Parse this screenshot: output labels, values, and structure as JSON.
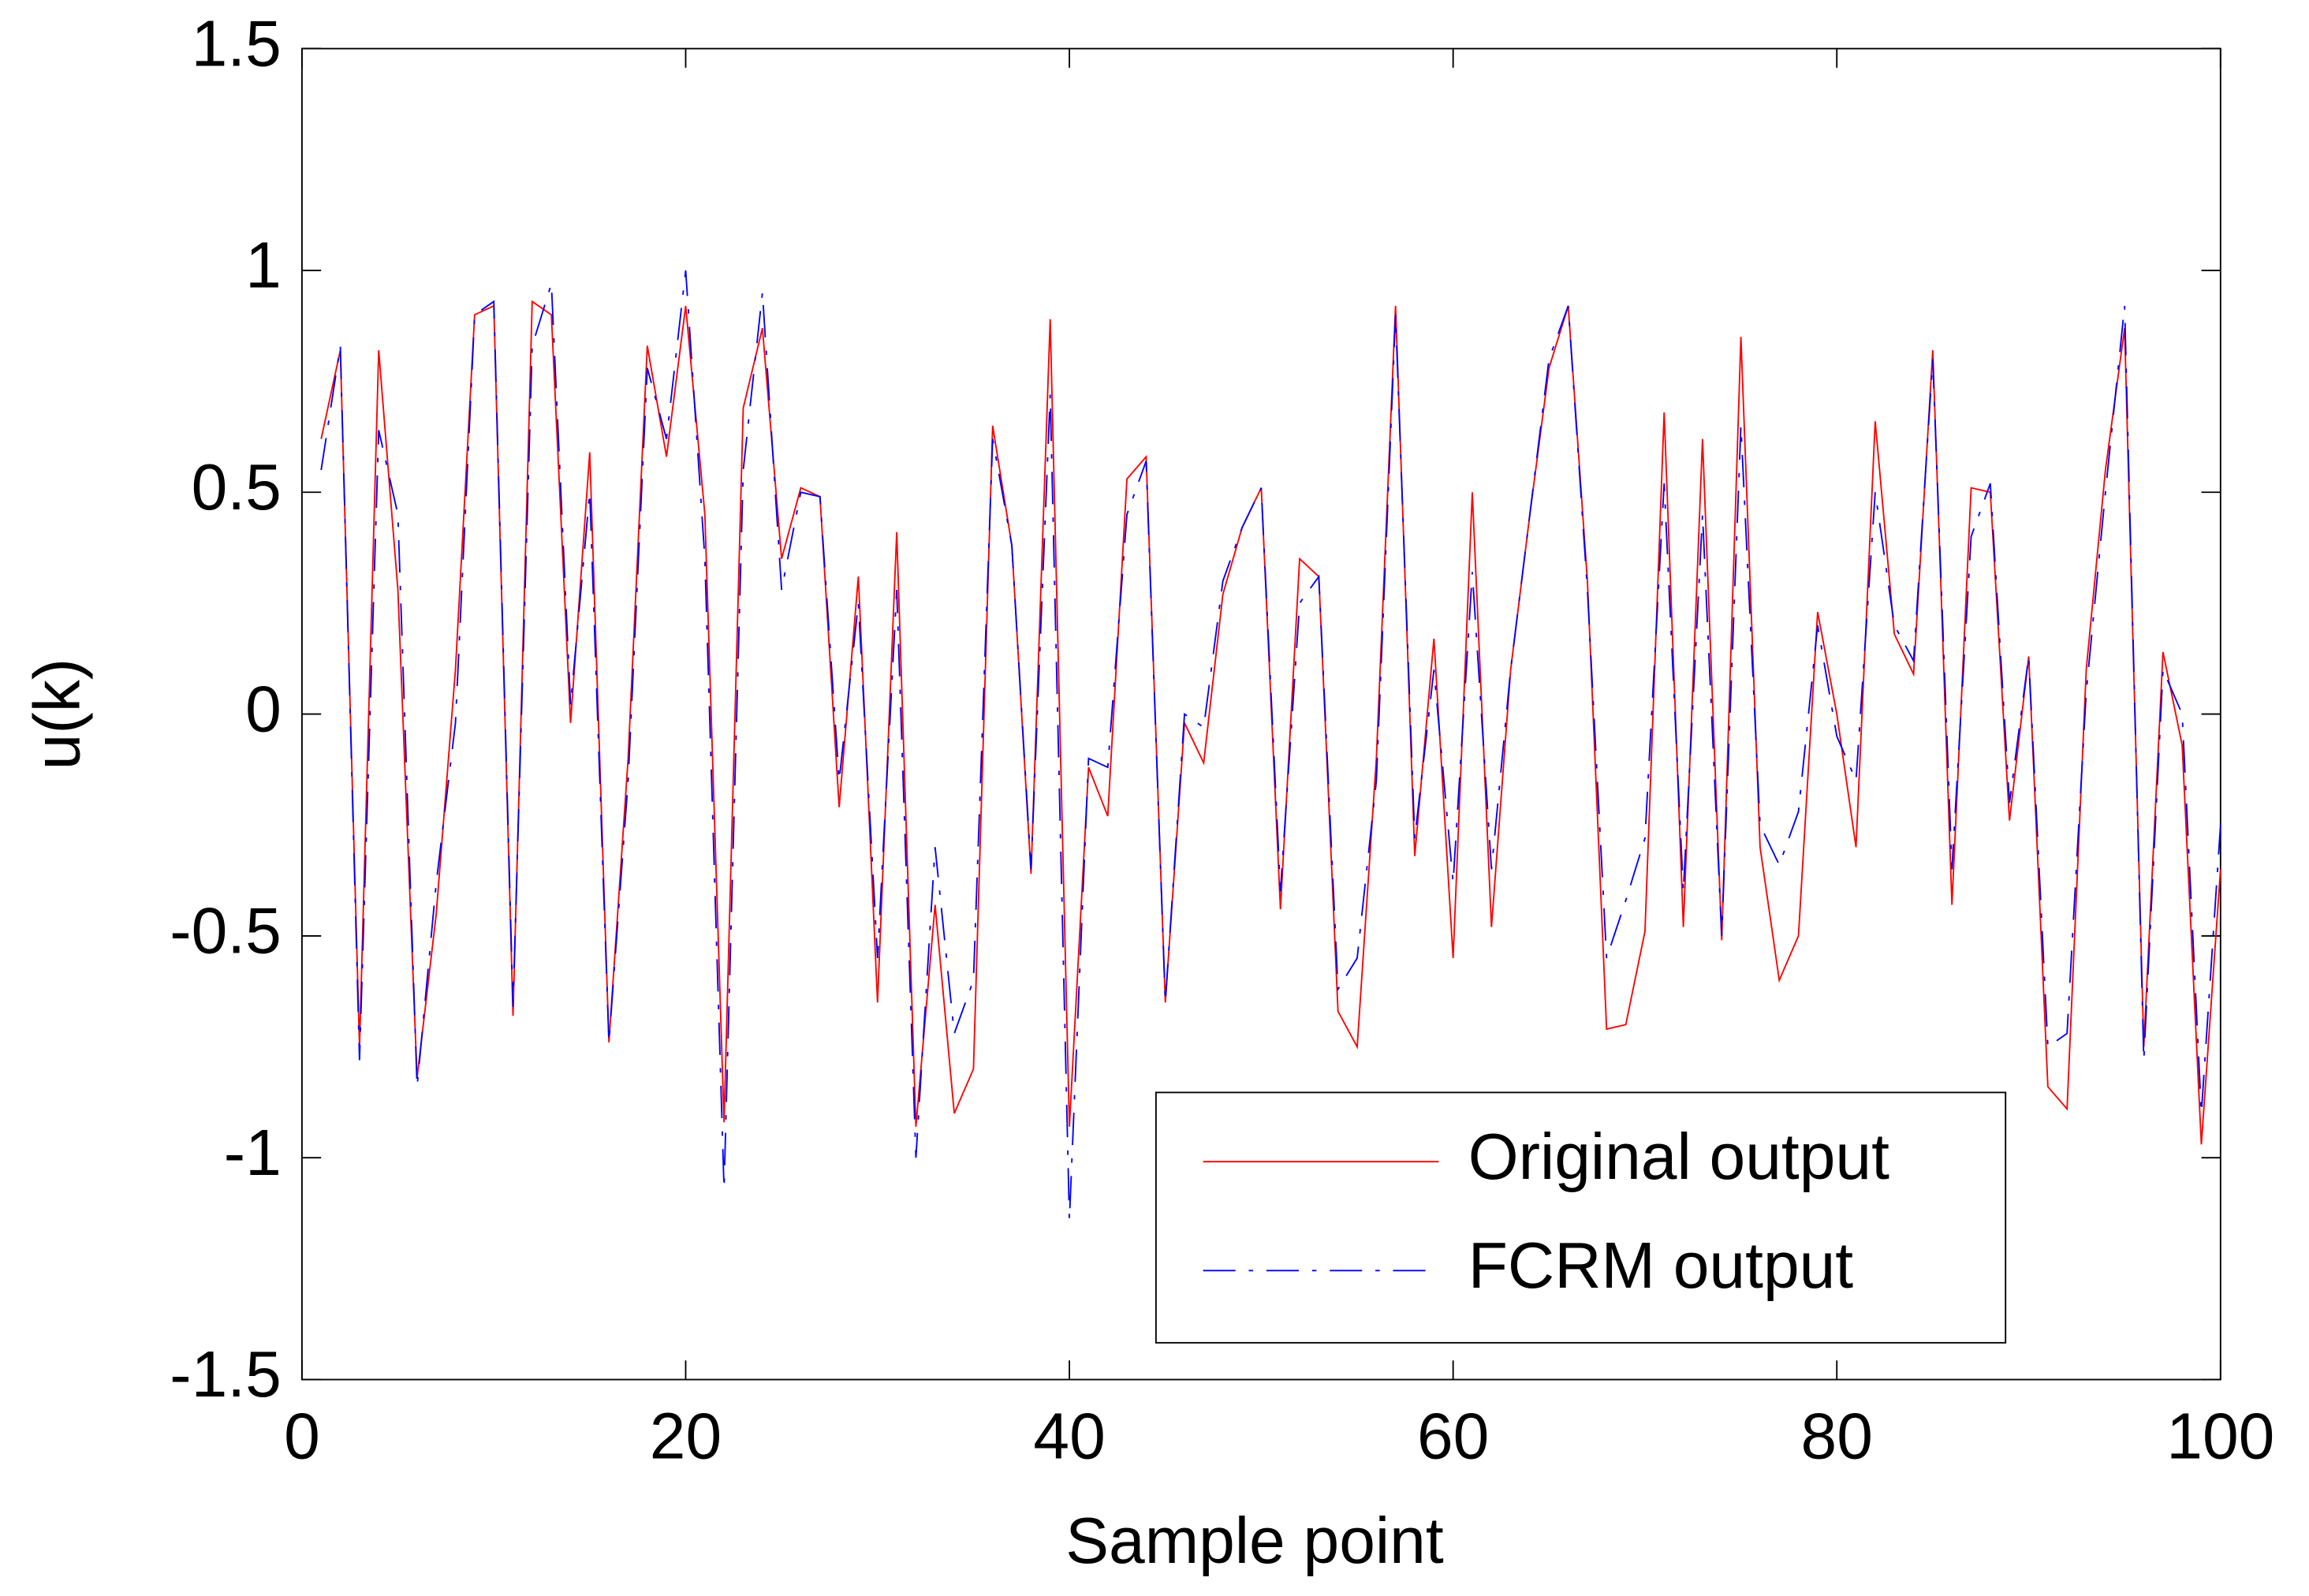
{
  "chart_data": {
    "type": "line",
    "xlabel": "Sample point",
    "ylabel": "u(k)",
    "x": [
      1,
      2,
      3,
      4,
      5,
      6,
      7,
      8,
      9,
      10,
      11,
      12,
      13,
      14,
      15,
      16,
      17,
      18,
      19,
      20,
      21,
      22,
      23,
      24,
      25,
      26,
      27,
      28,
      29,
      30,
      31,
      32,
      33,
      34,
      35,
      36,
      37,
      38,
      39,
      40,
      41,
      42,
      43,
      44,
      45,
      46,
      47,
      48,
      49,
      50,
      51,
      52,
      53,
      54,
      55,
      56,
      57,
      58,
      59,
      60,
      61,
      62,
      63,
      64,
      65,
      66,
      67,
      68,
      69,
      70,
      71,
      72,
      73,
      74,
      75,
      76,
      77,
      78,
      79,
      80,
      81,
      82,
      83,
      84,
      85,
      86,
      87,
      88,
      89,
      90,
      91,
      92,
      93,
      94,
      95,
      96,
      97,
      98,
      99,
      100
    ],
    "series": [
      {
        "name": "Original output",
        "color": "#ff0000",
        "style": "solid",
        "values": [
          0.62,
          0.82,
          -0.75,
          0.82,
          0.28,
          -0.82,
          -0.45,
          0.1,
          0.9,
          0.92,
          -0.68,
          0.93,
          0.9,
          -0.02,
          0.59,
          -0.74,
          -0.1,
          0.83,
          0.58,
          0.92,
          0.45,
          -0.92,
          0.69,
          0.87,
          0.35,
          0.51,
          0.49,
          -0.21,
          0.31,
          -0.65,
          0.41,
          -0.93,
          -0.43,
          -0.9,
          -0.8,
          0.65,
          0.38,
          -0.36,
          0.89,
          -0.93,
          -0.12,
          -0.23,
          0.53,
          0.58,
          -0.65,
          -0.02,
          -0.11,
          0.27,
          0.42,
          0.51,
          -0.44,
          0.35,
          0.31,
          -0.67,
          -0.75,
          -0.1,
          0.92,
          -0.32,
          0.17,
          -0.55,
          0.5,
          -0.48,
          0.1,
          0.45,
          0.78,
          0.92,
          0.3,
          -0.71,
          -0.7,
          -0.49,
          0.68,
          -0.48,
          0.62,
          -0.51,
          0.85,
          -0.3,
          -0.6,
          -0.5,
          0.23,
          0.0,
          -0.3,
          0.66,
          0.18,
          0.09,
          0.82,
          -0.43,
          0.51,
          0.5,
          -0.24,
          0.13,
          -0.84,
          -0.89,
          0.1,
          0.55,
          0.87,
          -0.75,
          0.14,
          -0.07,
          -0.97,
          -0.35
        ]
      },
      {
        "name": "FCRM output",
        "color": "#0000ff",
        "style": "dashdot",
        "values": [
          0.55,
          0.83,
          -0.78,
          0.64,
          0.45,
          -0.84,
          -0.38,
          -0.02,
          0.9,
          0.93,
          -0.66,
          0.83,
          0.97,
          0.02,
          0.5,
          -0.74,
          -0.15,
          0.78,
          0.62,
          1.0,
          0.35,
          -1.07,
          0.55,
          0.95,
          0.28,
          0.5,
          0.49,
          -0.15,
          0.25,
          -0.55,
          0.28,
          -1.0,
          -0.3,
          -0.72,
          -0.6,
          0.62,
          0.38,
          -0.35,
          0.72,
          -1.14,
          -0.1,
          -0.12,
          0.45,
          0.57,
          -0.65,
          0.0,
          -0.03,
          0.3,
          0.42,
          0.51,
          -0.4,
          0.25,
          0.31,
          -0.62,
          -0.55,
          -0.15,
          0.9,
          -0.28,
          0.1,
          -0.38,
          0.32,
          -0.35,
          0.1,
          0.45,
          0.8,
          0.92,
          0.28,
          -0.55,
          -0.42,
          -0.28,
          0.52,
          -0.4,
          0.45,
          -0.5,
          0.65,
          -0.25,
          -0.34,
          -0.22,
          0.2,
          -0.05,
          -0.15,
          0.5,
          0.2,
          0.12,
          0.8,
          -0.35,
          0.4,
          0.52,
          -0.2,
          0.13,
          -0.75,
          -0.72,
          0.05,
          0.5,
          0.92,
          -0.78,
          0.1,
          0.0,
          -0.9,
          -0.25
        ]
      }
    ],
    "xlim": [
      0,
      100
    ],
    "xticks": [
      0,
      20,
      40,
      60,
      80,
      100
    ],
    "ylim": [
      -1.5,
      1.5
    ],
    "yticks": [
      -1.5,
      -1,
      -0.5,
      0,
      0.5,
      1,
      1.5
    ],
    "grid": false,
    "legend": "lower right"
  }
}
